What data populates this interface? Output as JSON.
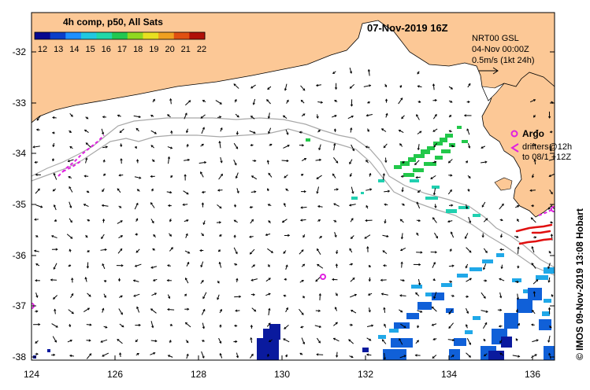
{
  "map": {
    "date_title": "07-Nov-2019 16Z",
    "colorbar": {
      "title": "4h comp, p50, All Sats",
      "ticks": [
        "12",
        "13",
        "14",
        "15",
        "16",
        "17",
        "18",
        "19",
        "20",
        "21",
        "22"
      ],
      "colors": [
        "#08088f",
        "#0b3fc9",
        "#1e90ff",
        "#20c8e0",
        "#20d8a8",
        "#20c850",
        "#90d820",
        "#e8e020",
        "#f0a020",
        "#e05010",
        "#b01008"
      ]
    },
    "current_info": {
      "line1": "NRT00 GSL",
      "line2": "04-Nov 00:00Z",
      "line3": "0.5m/s (1kt 24h)"
    },
    "argo_label": "Argo",
    "drifters_line1": "drifters@12h",
    "drifters_line2": "to 08/1 +12Z",
    "credit": "© IMOS 09-Nov-2019 13:08 Hobart",
    "y_ticks": [
      "-32",
      "-33",
      "-34",
      "-35",
      "-36",
      "-37",
      "-38"
    ],
    "x_ticks": [
      "124",
      "126",
      "128",
      "130",
      "132",
      "134",
      "136"
    ],
    "land_color": "#fcc896",
    "argo_color": "#e020e0",
    "drifter_red": "#e01010"
  }
}
